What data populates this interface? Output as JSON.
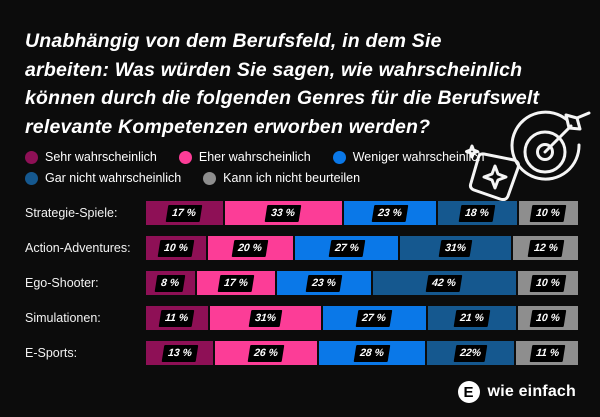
{
  "title_lines": [
    "Unabhängig von dem Berufsfeld, in dem Sie",
    "arbeiten: Was würden Sie sagen, wie wahrscheinlich",
    "können durch die folgenden Genres für die Berufswelt",
    "relevante Kompetenzen erworben werden?"
  ],
  "colors": {
    "background": "#0c0c0c",
    "sehr_wahrscheinlich": "#8e1056",
    "eher_wahrscheinlich": "#fc3d97",
    "weniger_wahrscheinlich": "#0a78e8",
    "gar_nicht_wahrscheinlich": "#15588f",
    "kann_ich_nicht_beurteilen": "#8e8e8e",
    "label_box": "#000000",
    "text": "#ffffff"
  },
  "legend": [
    {
      "label": "Sehr wahrscheinlich",
      "color": "#8e1056"
    },
    {
      "label": "Eher wahrscheinlich",
      "color": "#fc3d97"
    },
    {
      "label": "Weniger wahrscheinlich",
      "color": "#0a78e8"
    },
    {
      "label": "Gar nicht wahrscheinlich",
      "color": "#15588f"
    },
    {
      "label": "Kann ich nicht beurteilen",
      "color": "#8e8e8e"
    }
  ],
  "chart_data": {
    "type": "bar",
    "variant": "horizontal-stacked-100",
    "categories": [
      "Strategie-Spiele:",
      "Action-Adventures:",
      "Ego-Shooter:",
      "Simulationen:",
      "E-Sports:"
    ],
    "series": [
      {
        "name": "Sehr wahrscheinlich",
        "color": "#8e1056",
        "values": [
          17,
          10,
          8,
          11,
          13
        ]
      },
      {
        "name": "Eher wahrscheinlich",
        "color": "#fc3d97",
        "values": [
          33,
          20,
          17,
          31,
          26
        ]
      },
      {
        "name": "Weniger wahrscheinlich",
        "color": "#0a78e8",
        "values": [
          23,
          27,
          23,
          27,
          28
        ]
      },
      {
        "name": "Gar nicht wahrscheinlich",
        "color": "#15588f",
        "values": [
          18,
          31,
          42,
          21,
          22
        ]
      },
      {
        "name": "Kann ich nicht beurteilen",
        "color": "#8e8e8e",
        "values": [
          10,
          12,
          10,
          10,
          11
        ]
      }
    ],
    "value_labels": [
      [
        "17 %",
        "33 %",
        "23 %",
        "18 %",
        "10 %"
      ],
      [
        "10 %",
        "20 %",
        "27 %",
        "31%",
        "12 %"
      ],
      [
        "8 %",
        "17 %",
        "23 %",
        "42 %",
        "10 %"
      ],
      [
        "11 %",
        "31%",
        "27 %",
        "21 %",
        "10 %"
      ],
      [
        "13 %",
        "26 %",
        "28 %",
        "22%",
        "11 %"
      ]
    ],
    "xlim": [
      0,
      100
    ],
    "legend_position": "top",
    "grid": false
  },
  "icons": {
    "top_right_1": "dart-target-icon",
    "top_right_2": "sparkle-card-icon"
  },
  "footer": {
    "logo_letter": "E",
    "brand": "wie einfach"
  }
}
